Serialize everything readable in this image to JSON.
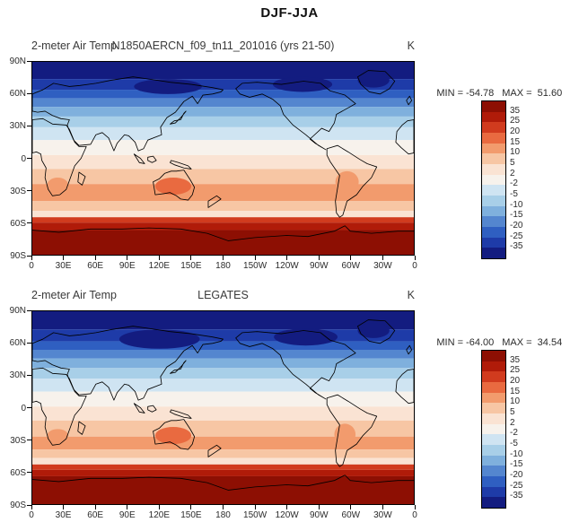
{
  "header": {
    "title": "DJF-JJA"
  },
  "axis": {
    "lat_labels": [
      "90N",
      "60N",
      "30N",
      "0",
      "30S",
      "60S",
      "90S"
    ],
    "lon_labels": [
      "0",
      "30E",
      "60E",
      "90E",
      "120E",
      "150E",
      "180",
      "150W",
      "120W",
      "90W",
      "60W",
      "30W",
      "0"
    ]
  },
  "colorbar": {
    "tick_labels": [
      "35",
      "25",
      "20",
      "15",
      "10",
      "5",
      "2",
      "-2",
      "-5",
      "-10",
      "-15",
      "-20",
      "-25",
      "-35"
    ],
    "palette_cold_to_warm": [
      "#131c80",
      "#1e3ba8",
      "#2f5fc1",
      "#5486cf",
      "#7fb0dd",
      "#a8cfe8",
      "#cfe4f2",
      "#f7f2ec",
      "#fae3d3",
      "#f7c6a4",
      "#f29b6d",
      "#e96a40",
      "#d13b1e",
      "#b01b09",
      "#8d0f03"
    ]
  },
  "panels": [
    {
      "var_title": "2-meter Air Temp",
      "case_title": "N1850AERCN_f09_tn11_201016 (yrs 21-50)",
      "units": "K",
      "min_text": "MIN = -54.78",
      "max_text": "MAX =  51.60",
      "bands": [
        [
          90,
          74,
          0
        ],
        [
          74,
          64,
          1
        ],
        [
          64,
          56,
          2
        ],
        [
          56,
          48,
          3
        ],
        [
          48,
          39,
          4
        ],
        [
          39,
          29,
          5
        ],
        [
          29,
          17,
          6
        ],
        [
          17,
          3,
          7
        ],
        [
          3,
          -10,
          8
        ],
        [
          -10,
          -24,
          9
        ],
        [
          -24,
          -40,
          10
        ],
        [
          -40,
          -49,
          9
        ],
        [
          -49,
          -55,
          8
        ],
        [
          -55,
          -60,
          12
        ],
        [
          -60,
          -67,
          13
        ],
        [
          -67,
          -90,
          14
        ]
      ],
      "patches": [
        {
          "lon": 128,
          "lat": 67,
          "rlon": 32,
          "rlat": 7,
          "level": 0
        },
        {
          "lon": 255,
          "lat": 69,
          "rlon": 28,
          "rlat": 7,
          "level": 0
        },
        {
          "lon": 322,
          "lat": 73,
          "rlon": 15,
          "rlat": 7,
          "level": 0
        },
        {
          "lon": 133,
          "lat": -26,
          "rlon": 17,
          "rlat": 8,
          "level": 11
        },
        {
          "lon": 24,
          "lat": -25,
          "rlon": 10,
          "rlat": 7,
          "level": 10
        },
        {
          "lon": 297,
          "lat": -22,
          "rlon": 11,
          "rlat": 10,
          "level": 10
        }
      ]
    },
    {
      "var_title": "2-meter Air Temp",
      "case_title": "LEGATES",
      "units": "K",
      "min_text": "MIN = -64.00",
      "max_text": "MAX =  34.54",
      "bands": [
        [
          90,
          73,
          0
        ],
        [
          73,
          62,
          1
        ],
        [
          62,
          54,
          2
        ],
        [
          54,
          46,
          3
        ],
        [
          46,
          37,
          4
        ],
        [
          37,
          27,
          5
        ],
        [
          27,
          15,
          6
        ],
        [
          15,
          1,
          7
        ],
        [
          1,
          -12,
          8
        ],
        [
          -12,
          -27,
          9
        ],
        [
          -27,
          -39,
          10
        ],
        [
          -39,
          -47,
          9
        ],
        [
          -47,
          -53,
          8
        ],
        [
          -53,
          -58,
          12
        ],
        [
          -58,
          -64,
          13
        ],
        [
          -64,
          -90,
          14
        ]
      ],
      "patches": [
        {
          "lon": 120,
          "lat": 64,
          "rlon": 38,
          "rlat": 9,
          "level": 0
        },
        {
          "lon": 258,
          "lat": 66,
          "rlon": 30,
          "rlat": 8,
          "level": 0
        },
        {
          "lon": 322,
          "lat": 72,
          "rlon": 15,
          "rlat": 7,
          "level": 0
        },
        {
          "lon": 133,
          "lat": -26,
          "rlon": 17,
          "rlat": 8,
          "level": 11
        },
        {
          "lon": 24,
          "lat": -26,
          "rlon": 10,
          "rlat": 6,
          "level": 10
        },
        {
          "lon": 295,
          "lat": -25,
          "rlon": 10,
          "rlat": 10,
          "level": 10
        }
      ]
    }
  ],
  "chart_data": [
    {
      "type": "heatmap",
      "title": "N1850AERCN_f09_tn11_201016 (yrs 21-50)",
      "variable": "2-meter Air Temp",
      "quantity": "DJF-JJA seasonal difference",
      "units": "K",
      "stat_min": -54.78,
      "stat_max": 51.6,
      "lon_range_deg": [
        0,
        360
      ],
      "lat_range_deg": [
        -90,
        90
      ],
      "contour_levels": [
        -35,
        -25,
        -20,
        -15,
        -10,
        -5,
        -2,
        2,
        5,
        10,
        15,
        20,
        25,
        35
      ],
      "approx_zonal_mean": {
        "lat": [
          90,
          75,
          60,
          45,
          30,
          15,
          0,
          -15,
          -30,
          -45,
          -60,
          -75,
          -90
        ],
        "value": [
          -40,
          -36,
          -24,
          -16,
          -9,
          -3,
          0,
          4,
          8,
          4,
          18,
          30,
          35
        ]
      },
      "legend_position": "right",
      "grid": false
    },
    {
      "type": "heatmap",
      "title": "LEGATES",
      "variable": "2-meter Air Temp",
      "quantity": "DJF-JJA seasonal difference",
      "units": "K",
      "stat_min": -64.0,
      "stat_max": 34.54,
      "lon_range_deg": [
        0,
        360
      ],
      "lat_range_deg": [
        -90,
        90
      ],
      "contour_levels": [
        -35,
        -25,
        -20,
        -15,
        -10,
        -5,
        -2,
        2,
        5,
        10,
        15,
        20,
        25,
        35
      ],
      "approx_zonal_mean": {
        "lat": [
          90,
          75,
          60,
          45,
          30,
          15,
          0,
          -15,
          -30,
          -45,
          -60,
          -75,
          -90
        ],
        "value": [
          -42,
          -38,
          -26,
          -17,
          -10,
          -4,
          0,
          4,
          8,
          5,
          20,
          30,
          33
        ]
      },
      "legend_position": "right",
      "grid": false
    }
  ]
}
